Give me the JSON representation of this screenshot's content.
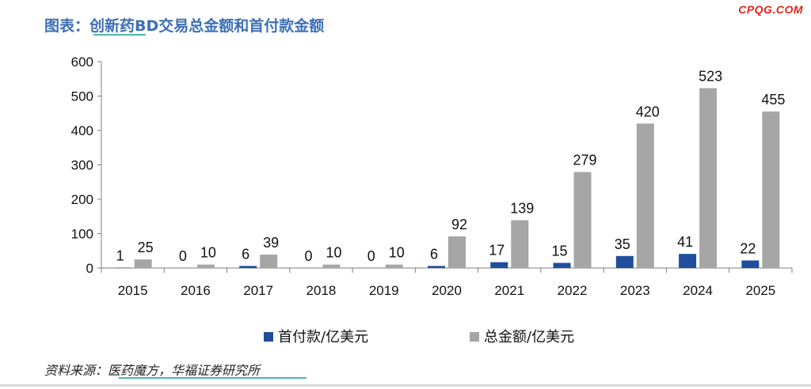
{
  "header": {
    "title": "图表：创新药BD交易总金额和首付款金额",
    "watermark": "CPQG.COM"
  },
  "footer": {
    "source": "资料来源：医药魔方，华福证券研究所"
  },
  "colors": {
    "title": "#3d6fb5",
    "series_upfront": "#1f4e9c",
    "series_total": "#a6a6a6",
    "accent_underline": "#4fb4ae",
    "watermark": "#e2231a"
  },
  "chart_data": {
    "type": "bar",
    "title": "图表：创新药BD交易总金额和首付款金额",
    "xlabel": "",
    "ylabel": "",
    "categories": [
      "2015",
      "2016",
      "2017",
      "2018",
      "2019",
      "2020",
      "2021",
      "2022",
      "2023",
      "2024",
      "2025"
    ],
    "series": [
      {
        "name": "首付款/亿美元",
        "color": "#1f4e9c",
        "values": [
          1,
          0,
          6,
          0,
          0,
          6,
          17,
          15,
          35,
          41,
          22
        ]
      },
      {
        "name": "总金额/亿美元",
        "color": "#a6a6a6",
        "values": [
          25,
          10,
          39,
          10,
          10,
          92,
          139,
          279,
          420,
          523,
          455
        ]
      }
    ],
    "ylim": [
      0,
      600
    ],
    "yticks": [
      0,
      100,
      200,
      300,
      400,
      500,
      600
    ],
    "grid": false,
    "legend": "bottom",
    "data_labels": true
  }
}
